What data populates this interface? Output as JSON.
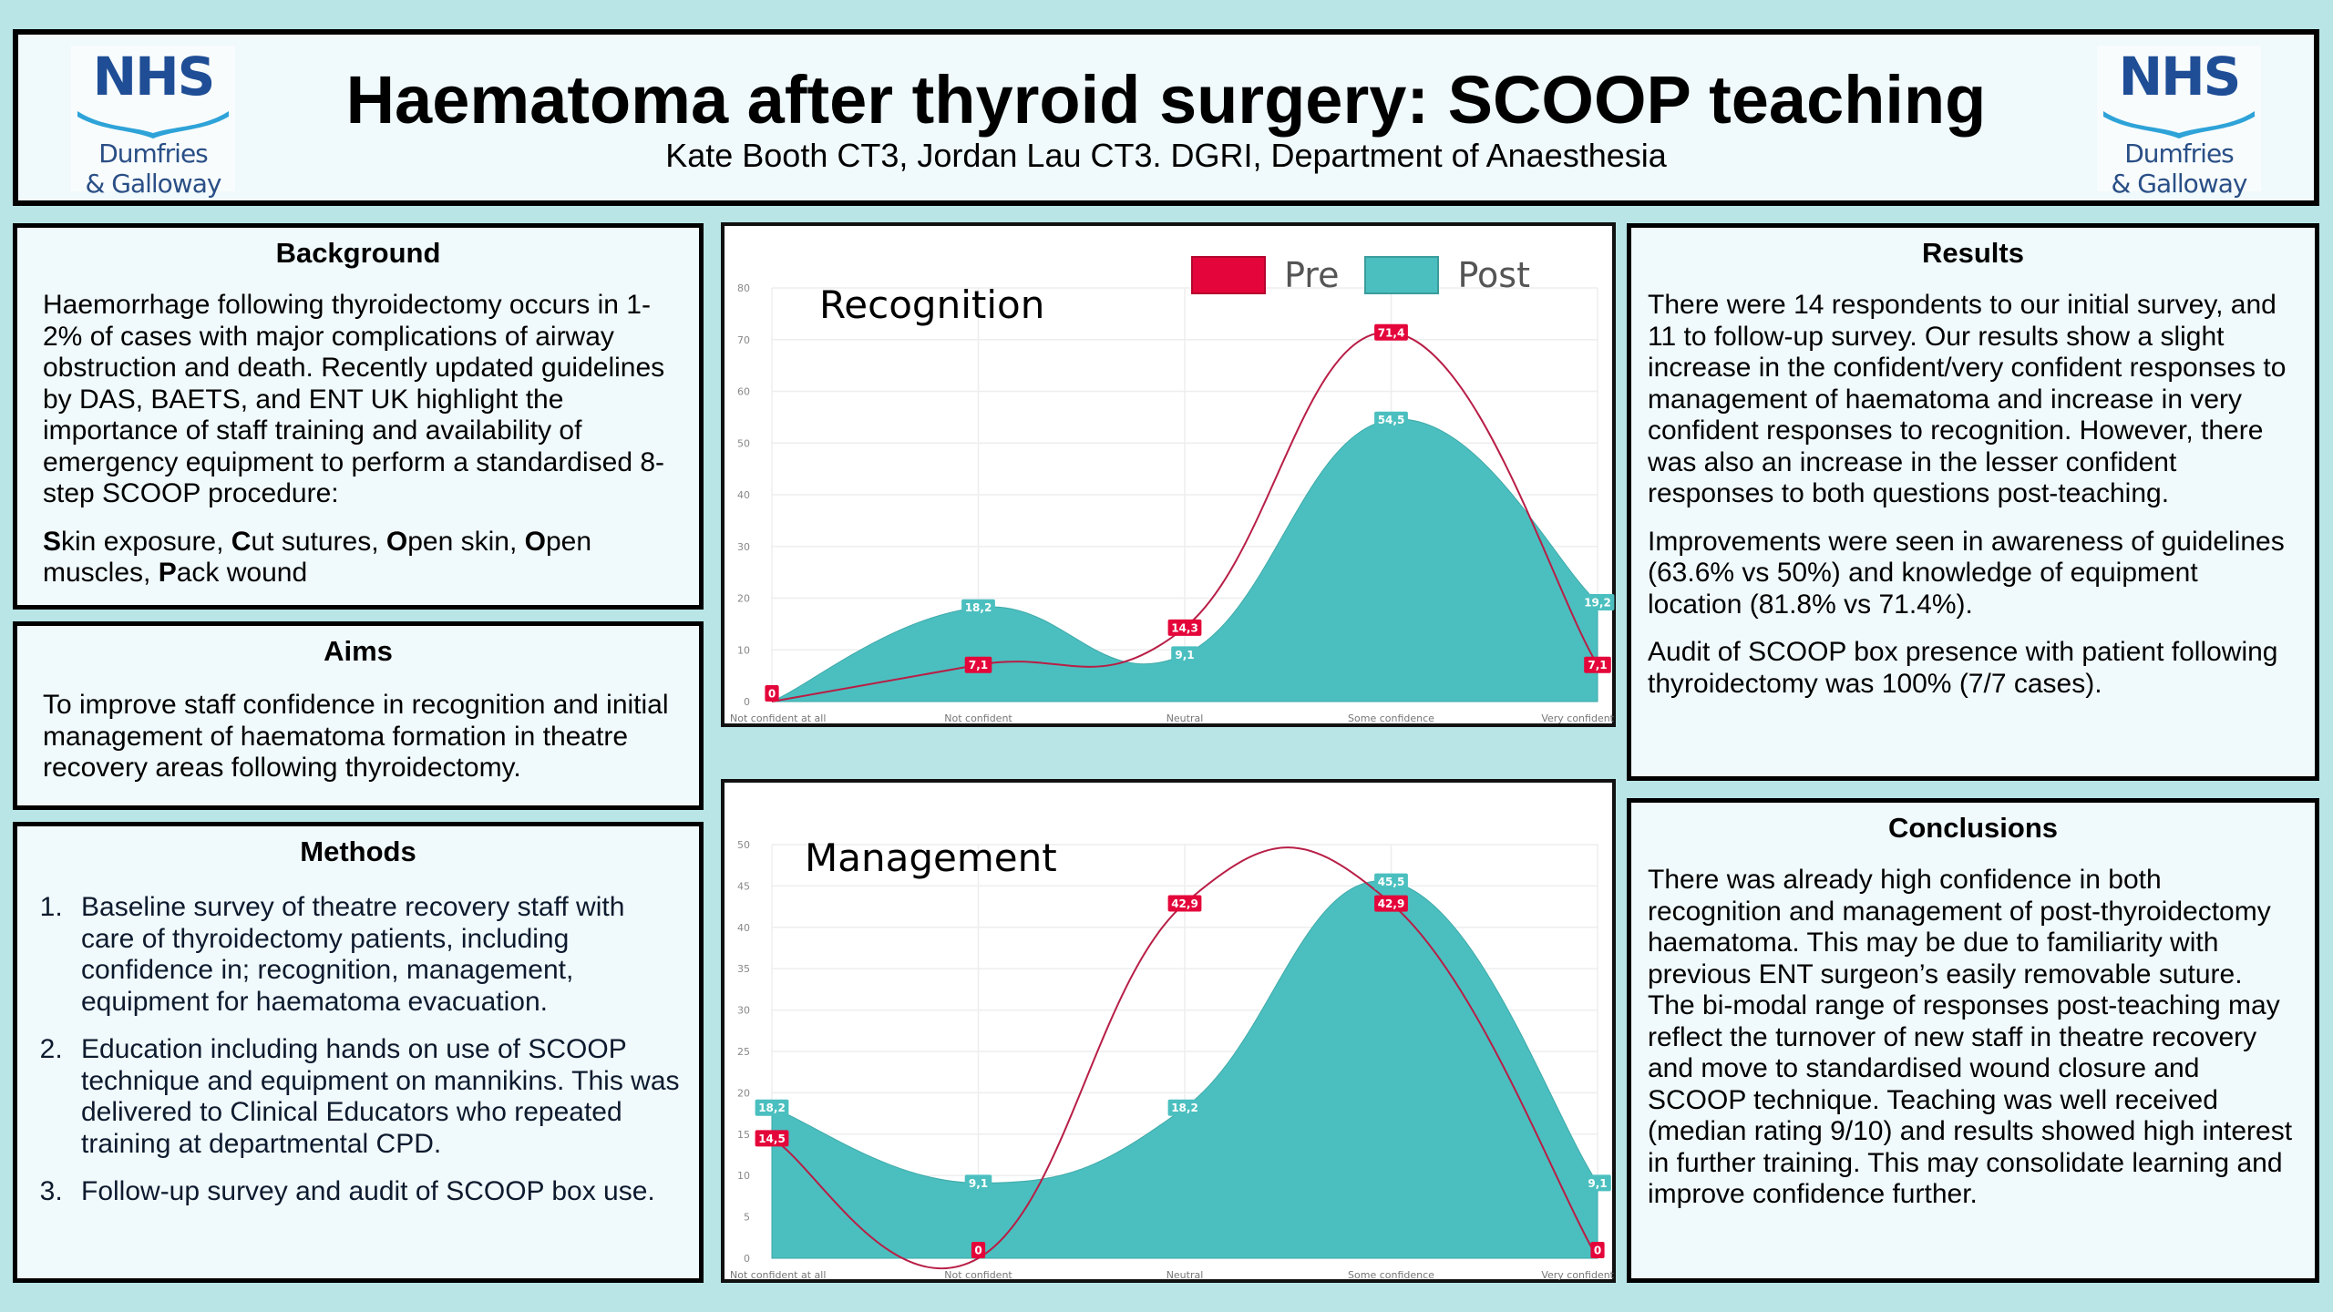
{
  "header": {
    "title": "Haematoma after thyroid surgery: SCOOP teaching",
    "subtitle": "Kate Booth CT3, Jordan Lau CT3. DGRI, Department of Anaesthesia",
    "logo": {
      "brand": "NHS",
      "org_line1": "Dumfries",
      "org_line2": "& Galloway"
    }
  },
  "background": {
    "heading": "Background",
    "paragraph": "Haemorrhage following thyroidectomy occurs in 1-2% of cases with major complications of airway obstruction and death. Recently updated guidelines by DAS, BAETS, and ENT UK highlight the importance of staff training and availability of emergency equipment to perform a standardised 8-step SCOOP procedure:",
    "scoop": [
      {
        "initial": "S",
        "rest": "kin exposure, "
      },
      {
        "initial": "C",
        "rest": "ut sutures, "
      },
      {
        "initial": "O",
        "rest": "pen skin, "
      },
      {
        "initial": "O",
        "rest": "pen muscles, "
      },
      {
        "initial": "P",
        "rest": "ack wound"
      }
    ]
  },
  "aims": {
    "heading": "Aims",
    "paragraph": "To improve staff confidence in recognition and initial management of haematoma formation in theatre recovery areas following thyroidectomy."
  },
  "methods": {
    "heading": "Methods",
    "items": [
      "Baseline survey of theatre recovery staff with care of thyroidectomy patients, including confidence in; recognition, management, equipment for haematoma evacuation.",
      "Education including hands on use of SCOOP technique and equipment on mannikins. This was delivered to Clinical Educators who repeated training at departmental CPD.",
      "Follow-up survey and audit of SCOOP box use."
    ]
  },
  "results": {
    "heading": "Results",
    "paragraphs": [
      "There were 14 respondents to our initial survey, and 11 to follow-up survey. Our results show a slight increase in the confident/very confident responses to management of haematoma and increase in very confident responses to recognition. However, there was also an increase in the lesser confident responses to both questions post-teaching.",
      "Improvements were seen in awareness of guidelines (63.6% vs 50%) and knowledge of equipment location (81.8% vs 71.4%).",
      "Audit of SCOOP box presence with patient following thyroidectomy was 100% (7/7 cases)."
    ]
  },
  "conclusions": {
    "heading": "Conclusions",
    "paragraph": "There was already high confidence in both recognition and management of post-thyroidectomy haematoma. This may be due to familiarity with previous ENT surgeon’s easily removable suture. The bi-modal range of responses post-teaching may reflect the turnover of new staff in theatre recovery and move to standardised wound closure and SCOOP technique. Teaching was well received (median rating 9/10) and results showed high interest in further training. This may consolidate learning and improve confidence further."
  },
  "colors": {
    "pre": "#e4063a",
    "post": "#4bbfbf",
    "grid": "#eeeeee",
    "tick": "#888888"
  },
  "chart_data": [
    {
      "type": "area",
      "title": "Recognition",
      "categories": [
        "Not confident at all",
        "Not confident",
        "Neutral",
        "Some confidence",
        "Very confident"
      ],
      "ylim": [
        0,
        80
      ],
      "yticks": [
        0,
        10,
        20,
        30,
        40,
        50,
        60,
        70,
        80
      ],
      "grid": true,
      "legend": "top-right",
      "show_legend": true,
      "series": [
        {
          "name": "Pre",
          "style": "line",
          "values": [
            0,
            7.1,
            14.3,
            71.4,
            7.1
          ],
          "labels": [
            "0",
            "7,1",
            "14,3",
            "71,4",
            "7,1"
          ]
        },
        {
          "name": "Post",
          "style": "area",
          "values": [
            0,
            18.2,
            9.1,
            54.5,
            19.2
          ],
          "labels": [
            "",
            "18,2",
            "9,1",
            "54,5",
            "19,2"
          ]
        }
      ]
    },
    {
      "type": "area",
      "title": "Management",
      "categories": [
        "Not confident at all",
        "Not confident",
        "Neutral",
        "Some confidence",
        "Very confident"
      ],
      "ylim": [
        0,
        50
      ],
      "yticks": [
        0,
        5,
        10,
        15,
        20,
        25,
        30,
        35,
        40,
        45,
        50
      ],
      "grid": true,
      "show_legend": false,
      "series": [
        {
          "name": "Pre",
          "style": "line",
          "values": [
            14.5,
            0,
            42.9,
            42.9,
            0
          ],
          "labels": [
            "14,5",
            "0",
            "42,9",
            "42,9",
            "0"
          ]
        },
        {
          "name": "Post",
          "style": "area",
          "values": [
            18.2,
            9.1,
            18.2,
            45.5,
            9.1
          ],
          "labels": [
            "18,2",
            "9,1",
            "18,2",
            "45,5",
            "9,1"
          ]
        }
      ]
    }
  ]
}
